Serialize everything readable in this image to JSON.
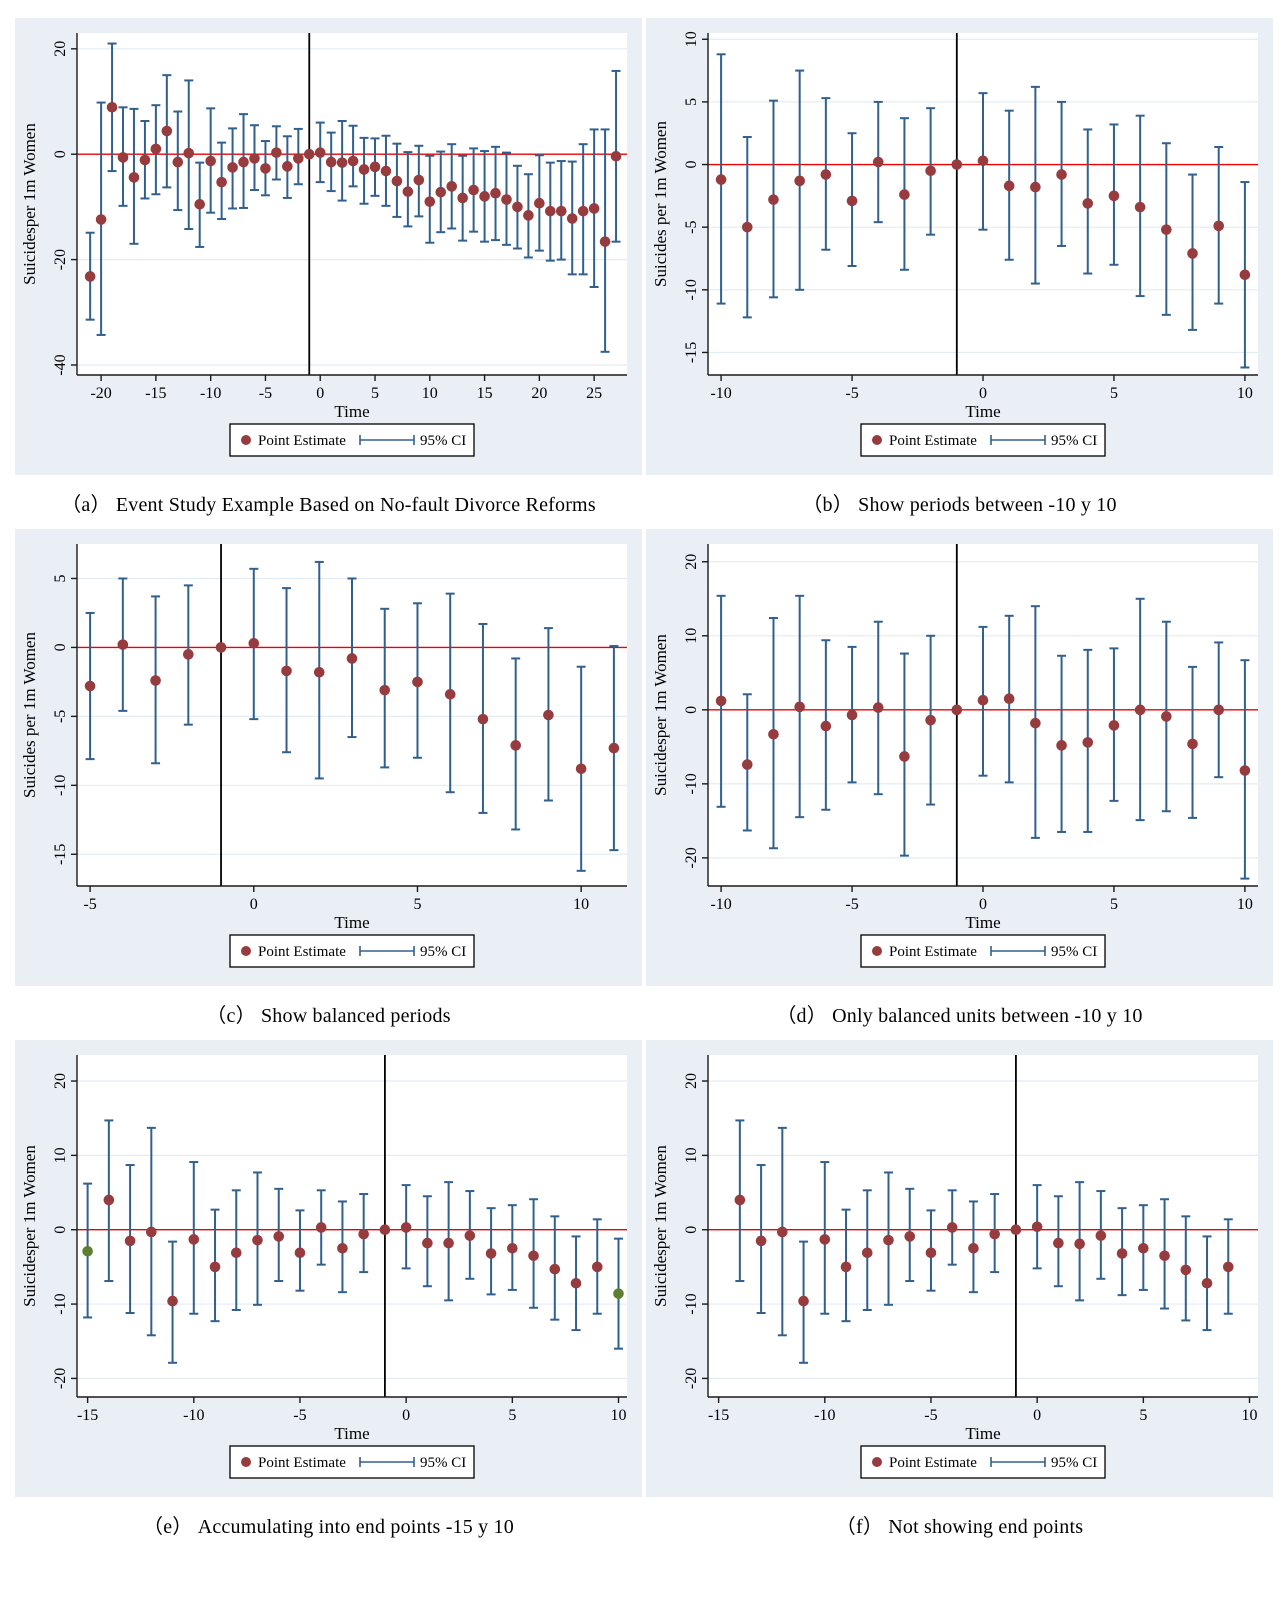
{
  "figure": {
    "xlabel": "Time",
    "legend": {
      "point_label": "Point Estimate",
      "ci_label": "95% CI"
    }
  },
  "style": {
    "panel_bg": "#e9eff5",
    "plot_bg": "#ffffff",
    "grid_color": "#e2ecf4",
    "axis_color": "#1a1a1a",
    "dot_color": "#963b3e",
    "ci_color": "#31608d",
    "endpoint_color": "#5c8030",
    "zero_line_color": "#f10000",
    "event_line_color": "#000000",
    "legend_border": "#000000",
    "legend_bg": "#ffffff"
  },
  "chart_data": [
    {
      "id": "a",
      "type": "scatter",
      "caption": "（a） Event Study Example Based on No-fault Divorce Reforms",
      "ylabel": "Suicidesper 1m Women",
      "xlabel": "Time",
      "xlim": [
        -22.2,
        28.0
      ],
      "ylim": [
        -41.9,
        23.0
      ],
      "xticks": [
        -20,
        -15,
        -10,
        -5,
        0,
        5,
        10,
        15,
        20,
        25
      ],
      "yticks": [
        20,
        0,
        -20,
        -40
      ],
      "ref_x": -1,
      "ref_y": 0,
      "points": [
        [
          -21,
          -23.2,
          -31.4,
          -14.9
        ],
        [
          -20,
          -12.4,
          -34.3,
          9.8
        ],
        [
          -19,
          8.9,
          -3.2,
          21.0
        ],
        [
          -18,
          -0.6,
          -9.8,
          8.9
        ],
        [
          -17,
          -4.4,
          -17.0,
          8.6
        ],
        [
          -16,
          -1.1,
          -8.4,
          6.3
        ],
        [
          -15,
          1.0,
          -7.6,
          9.3
        ],
        [
          -14,
          4.4,
          -6.3,
          15.0
        ],
        [
          -13,
          -1.5,
          -10.6,
          8.1
        ],
        [
          -12,
          0.2,
          -14.2,
          14.0
        ],
        [
          -11,
          -9.5,
          -17.6,
          -1.6
        ],
        [
          -10,
          -1.3,
          -11.1,
          8.7
        ],
        [
          -9,
          -5.3,
          -12.3,
          2.2
        ],
        [
          -8,
          -2.5,
          -10.3,
          4.9
        ],
        [
          -7,
          -1.5,
          -10.2,
          7.6
        ],
        [
          -6,
          -0.8,
          -6.8,
          5.5
        ],
        [
          -5,
          -2.7,
          -7.8,
          2.5
        ],
        [
          -4,
          0.3,
          -4.8,
          5.3
        ],
        [
          -3,
          -2.3,
          -8.3,
          3.4
        ],
        [
          -2,
          -0.8,
          -5.7,
          4.8
        ],
        [
          -1,
          0,
          null,
          null
        ],
        [
          0,
          0.3,
          -5.3,
          6.0
        ],
        [
          1,
          -1.5,
          -7.0,
          4.1
        ],
        [
          2,
          -1.6,
          -8.8,
          6.3
        ],
        [
          3,
          -1.3,
          -6.1,
          5.4
        ],
        [
          4,
          -2.9,
          -9.4,
          3.1
        ],
        [
          5,
          -2.4,
          -7.9,
          3.0
        ],
        [
          6,
          -3.2,
          -9.8,
          3.5
        ],
        [
          7,
          -5.1,
          -11.9,
          2.0
        ],
        [
          8,
          -7.1,
          -13.7,
          0.4
        ],
        [
          9,
          -4.9,
          -11.8,
          1.6
        ],
        [
          10,
          -9.0,
          -16.8,
          -0.3
        ],
        [
          11,
          -7.2,
          -14.8,
          0.5
        ],
        [
          12,
          -6.1,
          -14.1,
          1.9
        ],
        [
          13,
          -8.3,
          -16.4,
          -0.3
        ],
        [
          14,
          -6.8,
          -14.7,
          1.1
        ],
        [
          15,
          -8.0,
          -16.6,
          0.6
        ],
        [
          16,
          -7.4,
          -16.3,
          1.4
        ],
        [
          17,
          -8.6,
          -17.2,
          0.3
        ],
        [
          18,
          -10.0,
          -17.9,
          -2.2
        ],
        [
          19,
          -11.6,
          -19.6,
          -3.8
        ],
        [
          20,
          -9.3,
          -18.3,
          -0.2
        ],
        [
          21,
          -10.8,
          -20.2,
          -1.6
        ],
        [
          22,
          -10.8,
          -20.0,
          -1.3
        ],
        [
          23,
          -12.2,
          -22.8,
          -1.4
        ],
        [
          24,
          -10.8,
          -22.8,
          1.9
        ],
        [
          25,
          -10.3,
          -25.2,
          4.7
        ],
        [
          26,
          -16.6,
          -37.5,
          4.7
        ],
        [
          27,
          -0.4,
          -16.6,
          15.8
        ]
      ]
    },
    {
      "id": "b",
      "type": "scatter",
      "caption": "（b） Show periods between -10 y 10",
      "ylabel": "Suicides per 1m Women",
      "xlabel": "Time",
      "xlim": [
        -10.5,
        10.5
      ],
      "ylim": [
        -16.8,
        10.5
      ],
      "xticks": [
        -10,
        -5,
        0,
        5,
        10
      ],
      "yticks": [
        10,
        5,
        0,
        -5,
        -10,
        -15
      ],
      "ref_x": -1,
      "ref_y": 0,
      "points": [
        [
          -10,
          -1.2,
          -11.1,
          8.8
        ],
        [
          -9,
          -5.0,
          -12.2,
          2.2
        ],
        [
          -8,
          -2.8,
          -10.6,
          5.1
        ],
        [
          -7,
          -1.3,
          -10.0,
          7.5
        ],
        [
          -6,
          -0.8,
          -6.8,
          5.3
        ],
        [
          -5,
          -2.9,
          -8.1,
          2.5
        ],
        [
          -4,
          0.2,
          -4.6,
          5.0
        ],
        [
          -3,
          -2.4,
          -8.4,
          3.7
        ],
        [
          -2,
          -0.5,
          -5.6,
          4.5
        ],
        [
          -1,
          0,
          null,
          null
        ],
        [
          0,
          0.3,
          -5.2,
          5.7
        ],
        [
          1,
          -1.7,
          -7.6,
          4.3
        ],
        [
          2,
          -1.8,
          -9.5,
          6.2
        ],
        [
          3,
          -0.8,
          -6.5,
          5.0
        ],
        [
          4,
          -3.1,
          -8.7,
          2.8
        ],
        [
          5,
          -2.5,
          -8.0,
          3.2
        ],
        [
          6,
          -3.4,
          -10.5,
          3.9
        ],
        [
          7,
          -5.2,
          -12.0,
          1.7
        ],
        [
          8,
          -7.1,
          -13.2,
          -0.8
        ],
        [
          9,
          -4.9,
          -11.1,
          1.4
        ],
        [
          10,
          -8.8,
          -16.2,
          -1.4
        ]
      ]
    },
    {
      "id": "c",
      "type": "scatter",
      "caption": "（c） Show balanced periods",
      "ylabel": "Suicides per 1m Women",
      "xlabel": "Time",
      "xlim": [
        -5.4,
        11.4
      ],
      "ylim": [
        -17.3,
        7.5
      ],
      "xticks": [
        -5,
        0,
        5,
        10
      ],
      "yticks": [
        5,
        0,
        -5,
        -10,
        -15
      ],
      "ref_x": -1,
      "ref_y": 0,
      "points": [
        [
          -5,
          -2.8,
          -8.1,
          2.5
        ],
        [
          -4,
          0.2,
          -4.6,
          5.0
        ],
        [
          -3,
          -2.4,
          -8.4,
          3.7
        ],
        [
          -2,
          -0.5,
          -5.6,
          4.5
        ],
        [
          -1,
          0,
          null,
          null
        ],
        [
          0,
          0.3,
          -5.2,
          5.7
        ],
        [
          1,
          -1.7,
          -7.6,
          4.3
        ],
        [
          2,
          -1.8,
          -9.5,
          6.2
        ],
        [
          3,
          -0.8,
          -6.5,
          5.0
        ],
        [
          4,
          -3.1,
          -8.7,
          2.8
        ],
        [
          5,
          -2.5,
          -8.0,
          3.2
        ],
        [
          6,
          -3.4,
          -10.5,
          3.9
        ],
        [
          7,
          -5.2,
          -12.0,
          1.7
        ],
        [
          8,
          -7.1,
          -13.2,
          -0.8
        ],
        [
          9,
          -4.9,
          -11.1,
          1.4
        ],
        [
          10,
          -8.8,
          -16.2,
          -1.4
        ],
        [
          11,
          -7.3,
          -14.7,
          0.1
        ]
      ]
    },
    {
      "id": "d",
      "type": "scatter",
      "caption": "（d） Only balanced units between -10 y 10",
      "ylabel": "Suicidesper 1m Women",
      "xlabel": "Time",
      "xlim": [
        -10.5,
        10.5
      ],
      "ylim": [
        -23.8,
        22.4
      ],
      "xticks": [
        -10,
        -5,
        0,
        5,
        10
      ],
      "yticks": [
        20,
        10,
        0,
        -10,
        -20
      ],
      "ref_x": -1,
      "ref_y": 0,
      "points": [
        [
          -10,
          1.2,
          -13.1,
          15.4
        ],
        [
          -9,
          -7.4,
          -16.3,
          2.1
        ],
        [
          -8,
          -3.3,
          -18.7,
          12.4
        ],
        [
          -7,
          0.4,
          -14.5,
          15.4
        ],
        [
          -6,
          -2.2,
          -13.5,
          9.4
        ],
        [
          -5,
          -0.7,
          -9.8,
          8.5
        ],
        [
          -4,
          0.3,
          -11.4,
          11.9
        ],
        [
          -3,
          -6.3,
          -19.7,
          7.6
        ],
        [
          -2,
          -1.4,
          -12.8,
          10.0
        ],
        [
          -1,
          0,
          null,
          null
        ],
        [
          0,
          1.3,
          -8.9,
          11.2
        ],
        [
          1,
          1.5,
          -9.8,
          12.7
        ],
        [
          2,
          -1.8,
          -17.3,
          14.0
        ],
        [
          3,
          -4.8,
          -16.5,
          7.3
        ],
        [
          4,
          -4.4,
          -16.5,
          8.1
        ],
        [
          5,
          -2.1,
          -12.3,
          8.3
        ],
        [
          6,
          0.0,
          -14.9,
          15.0
        ],
        [
          7,
          -0.9,
          -13.7,
          11.9
        ],
        [
          8,
          -4.6,
          -14.6,
          5.8
        ],
        [
          9,
          0.0,
          -9.1,
          9.1
        ],
        [
          10,
          -8.2,
          -22.8,
          6.7
        ]
      ]
    },
    {
      "id": "e",
      "type": "scatter",
      "caption": "（e） Accumulating into end points -15 y 10",
      "ylabel": "Suicidesper 1m Women",
      "xlabel": "Time",
      "xlim": [
        -15.5,
        10.4
      ],
      "ylim": [
        -22.5,
        23.5
      ],
      "xticks": [
        -15,
        -10,
        -5,
        0,
        5,
        10
      ],
      "yticks": [
        20,
        10,
        0,
        -10,
        -20
      ],
      "ref_x": -1,
      "ref_y": 0,
      "points": [
        [
          -15,
          -2.9,
          -11.8,
          6.2,
          "g"
        ],
        [
          -14,
          4.0,
          -6.9,
          14.7
        ],
        [
          -13,
          -1.5,
          -11.2,
          8.7
        ],
        [
          -12,
          -0.3,
          -14.2,
          13.7
        ],
        [
          -11,
          -9.6,
          -17.9,
          -1.6
        ],
        [
          -10,
          -1.3,
          -11.3,
          9.1
        ],
        [
          -9,
          -5.0,
          -12.3,
          2.7
        ],
        [
          -8,
          -3.1,
          -10.8,
          5.3
        ],
        [
          -7,
          -1.4,
          -10.1,
          7.7
        ],
        [
          -6,
          -0.9,
          -6.9,
          5.5
        ],
        [
          -5,
          -3.1,
          -8.2,
          2.6
        ],
        [
          -4,
          0.3,
          -4.7,
          5.3
        ],
        [
          -3,
          -2.5,
          -8.4,
          3.8
        ],
        [
          -2,
          -0.6,
          -5.7,
          4.8
        ],
        [
          -1,
          0,
          null,
          null
        ],
        [
          0,
          0.3,
          -5.2,
          6.0
        ],
        [
          1,
          -1.8,
          -7.6,
          4.5
        ],
        [
          2,
          -1.8,
          -9.5,
          6.4
        ],
        [
          3,
          -0.8,
          -6.6,
          5.2
        ],
        [
          4,
          -3.2,
          -8.7,
          2.9
        ],
        [
          5,
          -2.5,
          -8.1,
          3.3
        ],
        [
          6,
          -3.5,
          -10.5,
          4.1
        ],
        [
          7,
          -5.3,
          -12.1,
          1.8
        ],
        [
          8,
          -7.2,
          -13.5,
          -0.9
        ],
        [
          9,
          -5.0,
          -11.3,
          1.4
        ],
        [
          10,
          -8.6,
          -16.0,
          -1.2,
          "g"
        ]
      ]
    },
    {
      "id": "f",
      "type": "scatter",
      "caption": "（f） Not showing end points",
      "ylabel": "Suicidesper 1m Women",
      "xlabel": "Time",
      "xlim": [
        -15.5,
        10.4
      ],
      "ylim": [
        -22.5,
        23.5
      ],
      "xticks": [
        -15,
        -10,
        -5,
        0,
        5,
        10
      ],
      "yticks": [
        20,
        10,
        0,
        -10,
        -20
      ],
      "ref_x": -1,
      "ref_y": 0,
      "points": [
        [
          -14,
          4.0,
          -6.9,
          14.7
        ],
        [
          -13,
          -1.5,
          -11.2,
          8.7
        ],
        [
          -12,
          -0.3,
          -14.2,
          13.7
        ],
        [
          -11,
          -9.6,
          -17.9,
          -1.6
        ],
        [
          -10,
          -1.3,
          -11.3,
          9.1
        ],
        [
          -9,
          -5.0,
          -12.3,
          2.7
        ],
        [
          -8,
          -3.1,
          -10.8,
          5.3
        ],
        [
          -7,
          -1.4,
          -10.1,
          7.7
        ],
        [
          -6,
          -0.9,
          -6.9,
          5.5
        ],
        [
          -5,
          -3.1,
          -8.2,
          2.6
        ],
        [
          -4,
          0.3,
          -4.7,
          5.3
        ],
        [
          -3,
          -2.5,
          -8.4,
          3.8
        ],
        [
          -2,
          -0.6,
          -5.7,
          4.8
        ],
        [
          -1,
          0,
          null,
          null
        ],
        [
          0,
          0.4,
          -5.2,
          6.0
        ],
        [
          1,
          -1.8,
          -7.6,
          4.5
        ],
        [
          2,
          -1.9,
          -9.5,
          6.4
        ],
        [
          3,
          -0.8,
          -6.6,
          5.2
        ],
        [
          4,
          -3.2,
          -8.8,
          2.9
        ],
        [
          5,
          -2.5,
          -8.1,
          3.3
        ],
        [
          6,
          -3.5,
          -10.6,
          4.1
        ],
        [
          7,
          -5.4,
          -12.2,
          1.8
        ],
        [
          8,
          -7.2,
          -13.5,
          -0.9
        ],
        [
          9,
          -5.0,
          -11.3,
          1.4
        ]
      ]
    }
  ]
}
